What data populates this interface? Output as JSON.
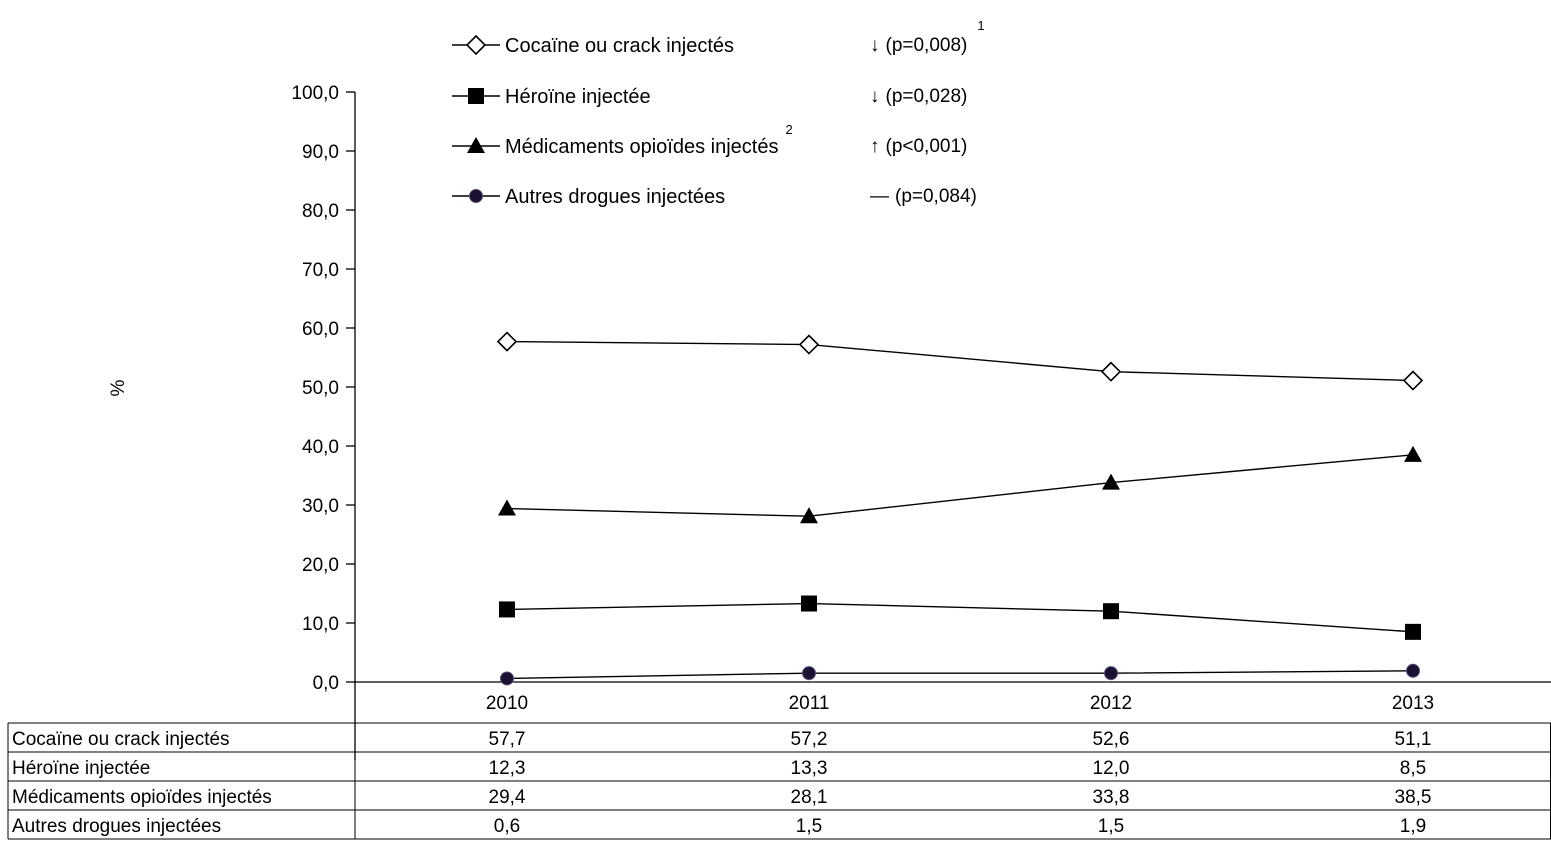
{
  "chart_data": {
    "type": "line",
    "categories": [
      "2010",
      "2011",
      "2012",
      "2013"
    ],
    "ylabel": "%",
    "ylim": [
      0,
      100
    ],
    "y_ticks": [
      "0,0",
      "10,0",
      "20,0",
      "30,0",
      "40,0",
      "50,0",
      "60,0",
      "70,0",
      "80,0",
      "90,0",
      "100,0"
    ],
    "grid": false,
    "legend_position": "top",
    "series": [
      {
        "name": "Cocaïne ou crack injectés",
        "marker": "diamond-open",
        "trend_arrow": "↓",
        "p_value": "(p=0,008)",
        "name_note": "",
        "trend_note": "1",
        "values": [
          57.7,
          57.2,
          52.6,
          51.1
        ],
        "labels": [
          "57,7",
          "57,2",
          "52,6",
          "51,1"
        ]
      },
      {
        "name": "Héroïne injectée",
        "marker": "square",
        "trend_arrow": "↓",
        "p_value": "(p=0,028)",
        "name_note": "",
        "trend_note": "",
        "values": [
          12.3,
          13.3,
          12.0,
          8.5
        ],
        "labels": [
          "12,3",
          "13,3",
          "12,0",
          "8,5"
        ]
      },
      {
        "name": "Médicaments opioïdes injectés",
        "marker": "triangle",
        "trend_arrow": "↑",
        "p_value": "(p<0,001)",
        "name_note": "2",
        "trend_note": "",
        "values": [
          29.4,
          28.1,
          33.8,
          38.5
        ],
        "labels": [
          "29,4",
          "28,1",
          "33,8",
          "38,5"
        ]
      },
      {
        "name": "Autres drogues injectées",
        "marker": "circle",
        "trend_arrow": "—",
        "p_value": "(p=0,084)",
        "name_note": "",
        "trend_note": "",
        "values": [
          0.6,
          1.5,
          1.5,
          1.9
        ],
        "labels": [
          "0,6",
          "1,5",
          "1,5",
          "1,9"
        ]
      }
    ]
  },
  "colors": {
    "line": "#000000",
    "circle_fill": "#1a1230",
    "background": "#ffffff"
  }
}
